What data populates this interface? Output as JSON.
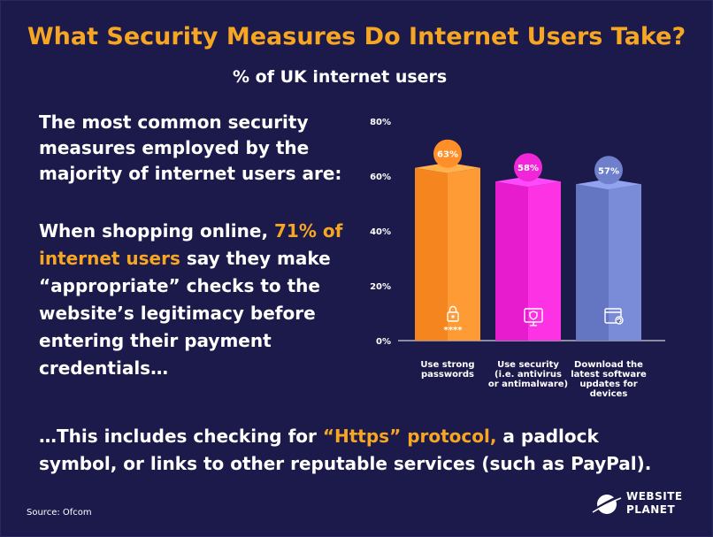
{
  "header": {
    "title": "What Security Measures Do Internet Users Take?",
    "subtitle": "% of UK internet users"
  },
  "lead_text": "The most common security measures employed by the majority of internet users are:",
  "shopping": {
    "part1": "When shopping online, ",
    "highlight": "71% of internet users",
    "part2": " say they make “appropriate” checks to the website’s legitimacy before entering their payment credentials…"
  },
  "bottom": {
    "part1": "…This includes checking for ",
    "highlight": "“Https” protocol,",
    "part2": " a padlock symbol, or links to other reputable services (such as PayPal)."
  },
  "source": "Source: Ofcom",
  "logo": {
    "line1": "WEBSITE",
    "line2": "PLANET"
  },
  "colors": {
    "background": "#1c1a4a",
    "accent": "#f6a623",
    "bar1": "#f5851f",
    "bar2": "#e81ccf",
    "bar3": "#6475c2"
  },
  "chart_data": {
    "type": "bar",
    "categories": [
      [
        "Use strong",
        "passwords"
      ],
      [
        "Use security",
        "(i.e. antivirus",
        "or antimalware)"
      ],
      [
        "Download the",
        "latest software",
        "updates for",
        "devices"
      ]
    ],
    "values": [
      63,
      58,
      57
    ],
    "data_labels": [
      "63%",
      "58%",
      "57%"
    ],
    "icons": [
      "padlock-icon",
      "monitor-shield-icon",
      "browser-refresh-icon"
    ],
    "yticks": [
      "0%",
      "20%",
      "40%",
      "60%",
      "80%"
    ],
    "ylim": [
      0,
      80
    ],
    "grid": false
  }
}
